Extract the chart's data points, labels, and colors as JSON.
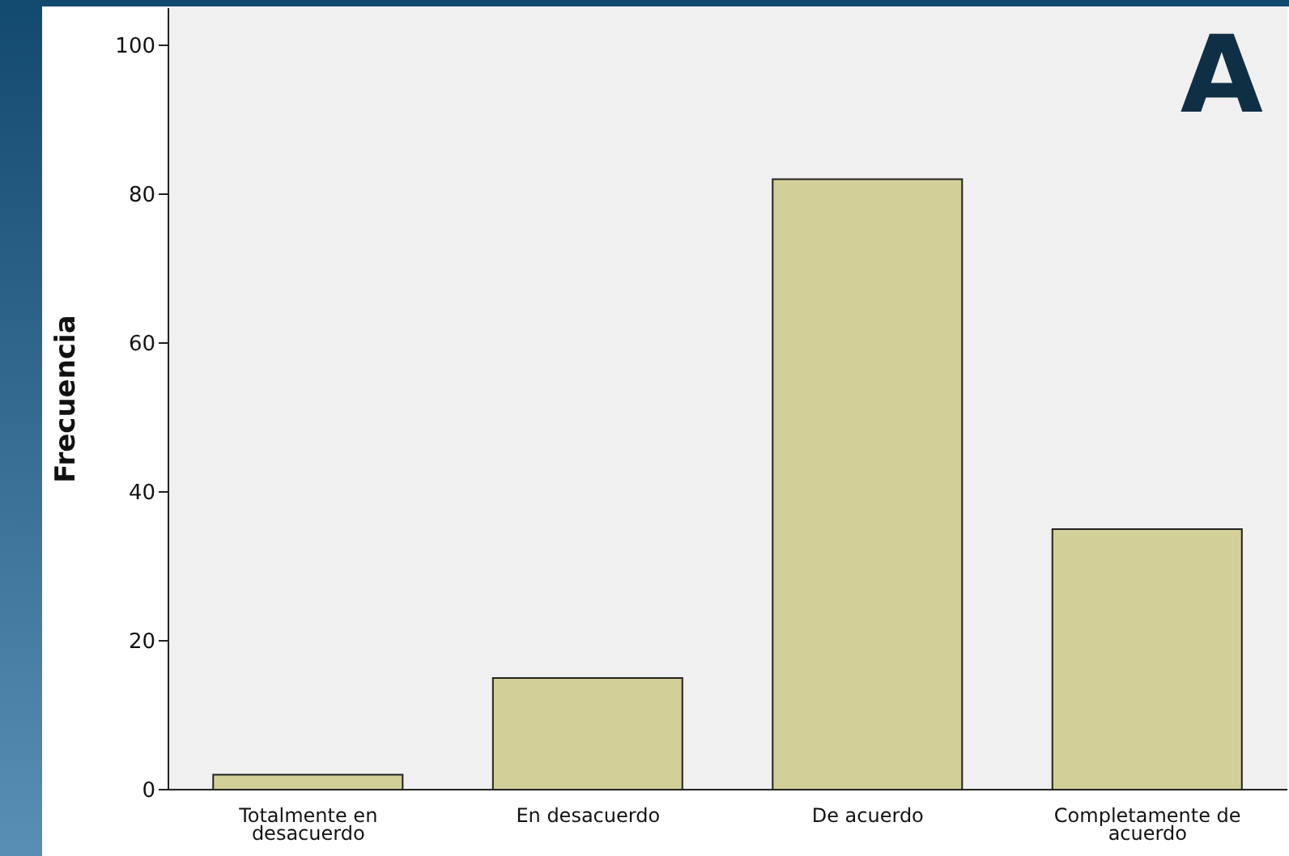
{
  "chart_data": {
    "type": "bar",
    "categories": [
      "Totalmente en desacuerdo",
      "En desacuerdo",
      "De acuerdo",
      "Completamente de acuerdo"
    ],
    "values": [
      2,
      15,
      82,
      35
    ],
    "color": "#d3cf98",
    "ylabel": "Frecuencia",
    "ylim": [
      0,
      105
    ],
    "yticks": [
      0,
      20,
      40,
      60,
      80,
      100
    ],
    "annotations": [
      "A"
    ]
  }
}
